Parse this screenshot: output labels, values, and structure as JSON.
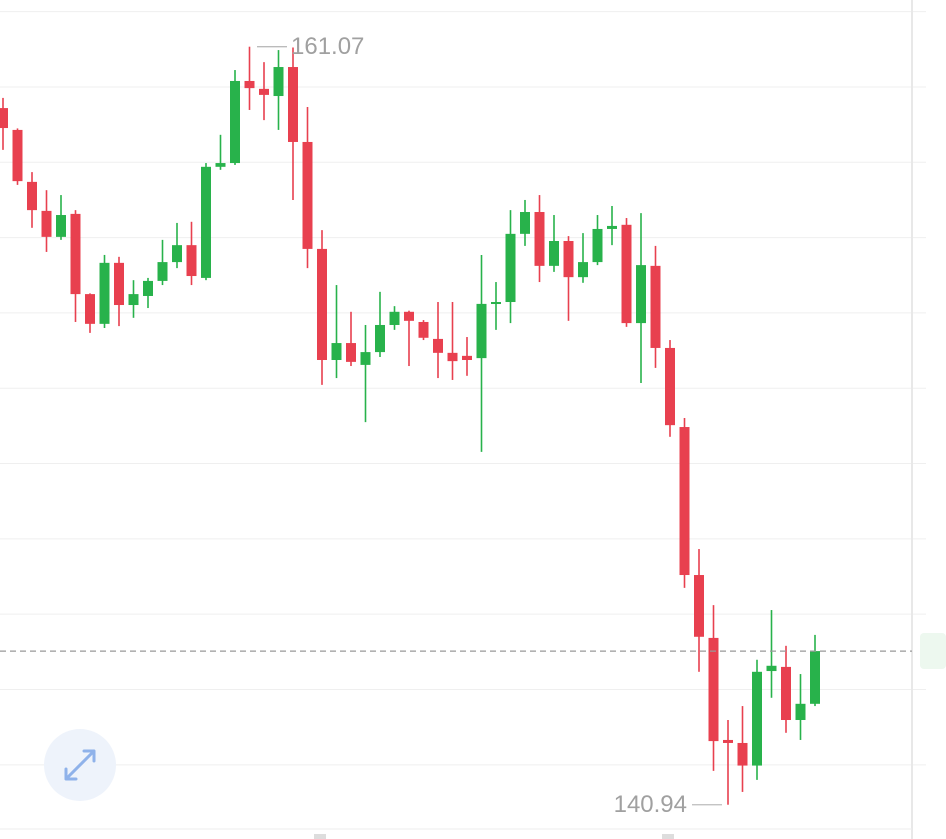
{
  "chart_data": {
    "type": "candlestick",
    "open": [
      159.44,
      158.86,
      157.48,
      156.71,
      156.02,
      156.63,
      154.5,
      153.71,
      155.33,
      154.21,
      154.45,
      154.85,
      155.35,
      155.8,
      154.93,
      157.88,
      157.98,
      160.16,
      159.95,
      159.76,
      160.53,
      158.54,
      155.7,
      152.75,
      153.2,
      152.62,
      152.96,
      153.68,
      154.03,
      153.76,
      153.31,
      152.94,
      152.86,
      152.8,
      154.24,
      154.29,
      156.1,
      156.68,
      155.25,
      155.91,
      154.95,
      155.35,
      156.23,
      156.34,
      153.73,
      155.25,
      153.07,
      150.97,
      147.04,
      145.37,
      142.66,
      142.58,
      141.98,
      144.49,
      144.6,
      143.19,
      143.62
    ],
    "high": [
      159.71,
      158.9,
      157.74,
      157.26,
      157.13,
      156.73,
      154.52,
      155.54,
      155.49,
      154.87,
      154.93,
      155.94,
      156.39,
      156.42,
      157.98,
      158.73,
      160.45,
      161.07,
      160.66,
      160.98,
      161.05,
      159.47,
      156.2,
      154.74,
      154.03,
      153.68,
      154.56,
      154.18,
      154.06,
      153.81,
      154.29,
      154.29,
      153.36,
      155.54,
      154.82,
      156.73,
      157.0,
      157.13,
      156.6,
      156.04,
      156.12,
      156.6,
      156.84,
      156.52,
      156.65,
      155.78,
      153.28,
      151.21,
      147.73,
      146.24,
      143.19,
      143.56,
      144.79,
      146.11,
      145.16,
      144.41,
      145.45
    ],
    "low": [
      158.33,
      157.4,
      156.26,
      155.62,
      155.94,
      153.76,
      153.47,
      153.6,
      153.65,
      153.87,
      154.13,
      154.74,
      155.19,
      154.74,
      154.87,
      157.8,
      157.93,
      159.39,
      159.12,
      158.86,
      157.0,
      155.19,
      152.09,
      152.27,
      152.59,
      151.1,
      152.83,
      153.55,
      152.59,
      153.28,
      152.27,
      152.22,
      152.33,
      150.31,
      153.55,
      153.73,
      155.78,
      154.82,
      155.09,
      153.79,
      154.8,
      155.27,
      155.8,
      153.63,
      152.14,
      152.54,
      150.71,
      146.7,
      144.47,
      141.84,
      140.94,
      141.28,
      141.6,
      143.78,
      142.85,
      142.66,
      143.56
    ],
    "close": [
      158.91,
      157.5,
      156.73,
      156.02,
      156.6,
      154.5,
      153.71,
      155.33,
      154.21,
      154.5,
      154.85,
      155.35,
      155.8,
      154.98,
      157.88,
      157.98,
      160.16,
      159.97,
      159.79,
      160.53,
      158.54,
      155.7,
      152.75,
      153.2,
      152.7,
      152.96,
      153.68,
      154.03,
      153.79,
      153.34,
      152.94,
      152.72,
      152.75,
      154.24,
      154.29,
      156.1,
      156.68,
      155.25,
      155.91,
      154.95,
      155.35,
      156.23,
      156.31,
      153.73,
      155.27,
      153.07,
      151.02,
      147.04,
      145.4,
      142.63,
      142.58,
      141.98,
      144.47,
      144.63,
      143.19,
      143.62,
      145.02
    ],
    "up_color": "#28b24b",
    "down_color": "#e8404f",
    "high_marker": 161.07,
    "low_marker": 140.94,
    "last_price": 145.02,
    "ylim": [
      140.03,
      162.31
    ],
    "yticks": [
      142,
      144,
      146,
      148,
      150,
      152,
      154,
      156,
      158,
      160,
      162
    ],
    "grid": true
  }
}
